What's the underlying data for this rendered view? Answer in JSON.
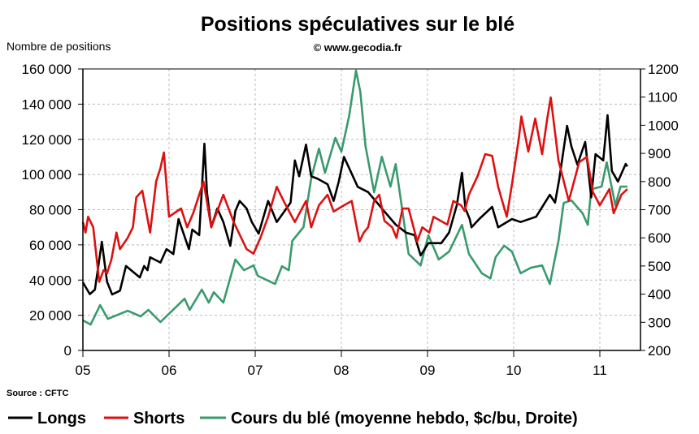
{
  "chart_data": {
    "type": "line",
    "title": "Positions spéculatives sur le blé",
    "subtitle": "© www.gecodia.fr",
    "ylabel": "Nombre de positions",
    "source": "Source : CFTC",
    "ylim": [
      0,
      160000
    ],
    "y2lim": [
      200,
      1200
    ],
    "xlim": [
      2005,
      2011.5
    ],
    "grid": true,
    "legend_position": "bottom",
    "y_ticks": [
      "0",
      "20 000",
      "40 000",
      "60 000",
      "80 000",
      "100 000",
      "120 000",
      "140 000",
      "160 000"
    ],
    "y2_ticks": [
      "200",
      "300",
      "400",
      "500",
      "600",
      "700",
      "800",
      "900",
      "1000",
      "1100",
      "1200"
    ],
    "x_ticks": [
      "05",
      "06",
      "07",
      "08",
      "09",
      "10",
      "11"
    ],
    "series": [
      {
        "name": "Longs",
        "axis": "left",
        "color": "#000000",
        "points": [
          [
            2005.0,
            38700
          ],
          [
            2005.08,
            32000
          ],
          [
            2005.14,
            34600
          ],
          [
            2005.22,
            61800
          ],
          [
            2005.28,
            39000
          ],
          [
            2005.34,
            31800
          ],
          [
            2005.43,
            34000
          ],
          [
            2005.5,
            48000
          ],
          [
            2005.66,
            41500
          ],
          [
            2005.71,
            48000
          ],
          [
            2005.75,
            45600
          ],
          [
            2005.78,
            53000
          ],
          [
            2005.9,
            50000
          ],
          [
            2005.97,
            57600
          ],
          [
            2006.05,
            54800
          ],
          [
            2006.11,
            74700
          ],
          [
            2006.23,
            57600
          ],
          [
            2006.27,
            68700
          ],
          [
            2006.35,
            65500
          ],
          [
            2006.41,
            117500
          ],
          [
            2006.44,
            90000
          ],
          [
            2006.49,
            70000
          ],
          [
            2006.56,
            80700
          ],
          [
            2006.63,
            73000
          ],
          [
            2006.71,
            59500
          ],
          [
            2006.77,
            79300
          ],
          [
            2006.82,
            85000
          ],
          [
            2006.9,
            80700
          ],
          [
            2006.96,
            73000
          ],
          [
            2007.04,
            66400
          ],
          [
            2007.15,
            85000
          ],
          [
            2007.25,
            73000
          ],
          [
            2007.41,
            84000
          ],
          [
            2007.46,
            108000
          ],
          [
            2007.51,
            99000
          ],
          [
            2007.59,
            117000
          ],
          [
            2007.65,
            99000
          ],
          [
            2007.72,
            97700
          ],
          [
            2007.84,
            94500
          ],
          [
            2007.91,
            85000
          ],
          [
            2007.97,
            96000
          ],
          [
            2008.03,
            110000
          ],
          [
            2008.09,
            103700
          ],
          [
            2008.19,
            93000
          ],
          [
            2008.31,
            90000
          ],
          [
            2008.5,
            79000
          ],
          [
            2008.63,
            71500
          ],
          [
            2008.75,
            67000
          ],
          [
            2008.85,
            65500
          ],
          [
            2008.92,
            54000
          ],
          [
            2009.01,
            61000
          ],
          [
            2009.16,
            61000
          ],
          [
            2009.25,
            67000
          ],
          [
            2009.34,
            82500
          ],
          [
            2009.4,
            101000
          ],
          [
            2009.44,
            80700
          ],
          [
            2009.49,
            74700
          ],
          [
            2009.51,
            70000
          ],
          [
            2009.6,
            74700
          ],
          [
            2009.75,
            81600
          ],
          [
            2009.82,
            70000
          ],
          [
            2009.98,
            74700
          ],
          [
            2010.08,
            73000
          ],
          [
            2010.26,
            76000
          ],
          [
            2010.42,
            88500
          ],
          [
            2010.48,
            84000
          ],
          [
            2010.53,
            97700
          ],
          [
            2010.62,
            127700
          ],
          [
            2010.67,
            116000
          ],
          [
            2010.74,
            105600
          ],
          [
            2010.83,
            118500
          ],
          [
            2010.9,
            87000
          ],
          [
            2010.95,
            111600
          ],
          [
            2011.04,
            108000
          ],
          [
            2011.09,
            133700
          ],
          [
            2011.14,
            102000
          ],
          [
            2011.21,
            96000
          ],
          [
            2011.3,
            106000
          ],
          [
            2011.32,
            104600
          ]
        ]
      },
      {
        "name": "Shorts",
        "axis": "left",
        "color": "#dd1111",
        "points": [
          [
            2005.0,
            73000
          ],
          [
            2005.03,
            67000
          ],
          [
            2005.06,
            76000
          ],
          [
            2005.12,
            70000
          ],
          [
            2005.19,
            39000
          ],
          [
            2005.24,
            45600
          ],
          [
            2005.28,
            43800
          ],
          [
            2005.33,
            51600
          ],
          [
            2005.39,
            67000
          ],
          [
            2005.43,
            57600
          ],
          [
            2005.52,
            64000
          ],
          [
            2005.58,
            70000
          ],
          [
            2005.62,
            87000
          ],
          [
            2005.69,
            90800
          ],
          [
            2005.78,
            67000
          ],
          [
            2005.85,
            96000
          ],
          [
            2005.9,
            103700
          ],
          [
            2005.94,
            112500
          ],
          [
            2006.0,
            76000
          ],
          [
            2006.14,
            80700
          ],
          [
            2006.21,
            70000
          ],
          [
            2006.28,
            78000
          ],
          [
            2006.4,
            96000
          ],
          [
            2006.49,
            70000
          ],
          [
            2006.63,
            88500
          ],
          [
            2006.75,
            73000
          ],
          [
            2006.9,
            57600
          ],
          [
            2006.98,
            55000
          ],
          [
            2007.06,
            64000
          ],
          [
            2007.15,
            76000
          ],
          [
            2007.25,
            93000
          ],
          [
            2007.34,
            84000
          ],
          [
            2007.46,
            73000
          ],
          [
            2007.59,
            85000
          ],
          [
            2007.65,
            70000
          ],
          [
            2007.74,
            82500
          ],
          [
            2007.84,
            88500
          ],
          [
            2007.91,
            79000
          ],
          [
            2008.03,
            82500
          ],
          [
            2008.12,
            85000
          ],
          [
            2008.21,
            62000
          ],
          [
            2008.26,
            67000
          ],
          [
            2008.31,
            70000
          ],
          [
            2008.38,
            85000
          ],
          [
            2008.44,
            88500
          ],
          [
            2008.5,
            73700
          ],
          [
            2008.59,
            70000
          ],
          [
            2008.64,
            64000
          ],
          [
            2008.71,
            80700
          ],
          [
            2008.78,
            80700
          ],
          [
            2008.88,
            62000
          ],
          [
            2008.94,
            70000
          ],
          [
            2009.02,
            67000
          ],
          [
            2009.07,
            76000
          ],
          [
            2009.23,
            71500
          ],
          [
            2009.3,
            85000
          ],
          [
            2009.39,
            82500
          ],
          [
            2009.43,
            79300
          ],
          [
            2009.48,
            88500
          ],
          [
            2009.58,
            99000
          ],
          [
            2009.67,
            111600
          ],
          [
            2009.75,
            110600
          ],
          [
            2009.82,
            93000
          ],
          [
            2009.92,
            76000
          ],
          [
            2009.98,
            94500
          ],
          [
            2010.06,
            120800
          ],
          [
            2010.09,
            133000
          ],
          [
            2010.17,
            113000
          ],
          [
            2010.25,
            131800
          ],
          [
            2010.33,
            111600
          ],
          [
            2010.39,
            131800
          ],
          [
            2010.43,
            143800
          ],
          [
            2010.52,
            108000
          ],
          [
            2010.64,
            85000
          ],
          [
            2010.76,
            107000
          ],
          [
            2010.85,
            110000
          ],
          [
            2010.92,
            90000
          ],
          [
            2011.0,
            82500
          ],
          [
            2011.11,
            91700
          ],
          [
            2011.16,
            78000
          ],
          [
            2011.25,
            88500
          ],
          [
            2011.32,
            91700
          ]
        ]
      },
      {
        "name": "Cours du blé (moyenne hebdo, $c/bu, Droite)",
        "axis": "right",
        "color": "#3a9a6e",
        "points": [
          [
            2005.0,
            307
          ],
          [
            2005.09,
            292
          ],
          [
            2005.2,
            361
          ],
          [
            2005.29,
            312
          ],
          [
            2005.52,
            341
          ],
          [
            2005.67,
            321
          ],
          [
            2005.76,
            344
          ],
          [
            2005.9,
            301
          ],
          [
            2006.18,
            384
          ],
          [
            2006.24,
            344
          ],
          [
            2006.38,
            416
          ],
          [
            2006.46,
            370
          ],
          [
            2006.52,
            407
          ],
          [
            2006.63,
            370
          ],
          [
            2006.77,
            523
          ],
          [
            2006.87,
            485
          ],
          [
            2006.98,
            502
          ],
          [
            2007.03,
            465
          ],
          [
            2007.23,
            436
          ],
          [
            2007.31,
            499
          ],
          [
            2007.39,
            485
          ],
          [
            2007.43,
            589
          ],
          [
            2007.56,
            638
          ],
          [
            2007.65,
            811
          ],
          [
            2007.74,
            917
          ],
          [
            2007.81,
            831
          ],
          [
            2007.93,
            955
          ],
          [
            2008.0,
            906
          ],
          [
            2008.09,
            1032
          ],
          [
            2008.17,
            1194
          ],
          [
            2008.22,
            1119
          ],
          [
            2008.28,
            926
          ],
          [
            2008.38,
            762
          ],
          [
            2008.47,
            888
          ],
          [
            2008.57,
            782
          ],
          [
            2008.63,
            862
          ],
          [
            2008.78,
            543
          ],
          [
            2008.92,
            502
          ],
          [
            2009.01,
            609
          ],
          [
            2009.13,
            523
          ],
          [
            2009.25,
            551
          ],
          [
            2009.4,
            646
          ],
          [
            2009.48,
            543
          ],
          [
            2009.63,
            474
          ],
          [
            2009.73,
            456
          ],
          [
            2009.79,
            531
          ],
          [
            2009.89,
            572
          ],
          [
            2009.98,
            551
          ],
          [
            2010.08,
            474
          ],
          [
            2010.2,
            494
          ],
          [
            2010.33,
            502
          ],
          [
            2010.42,
            436
          ],
          [
            2010.52,
            589
          ],
          [
            2010.58,
            724
          ],
          [
            2010.67,
            733
          ],
          [
            2010.8,
            687
          ],
          [
            2010.86,
            646
          ],
          [
            2010.9,
            773
          ],
          [
            2011.02,
            782
          ],
          [
            2011.08,
            868
          ],
          [
            2011.18,
            715
          ],
          [
            2011.24,
            782
          ],
          [
            2011.32,
            782
          ]
        ]
      }
    ]
  }
}
